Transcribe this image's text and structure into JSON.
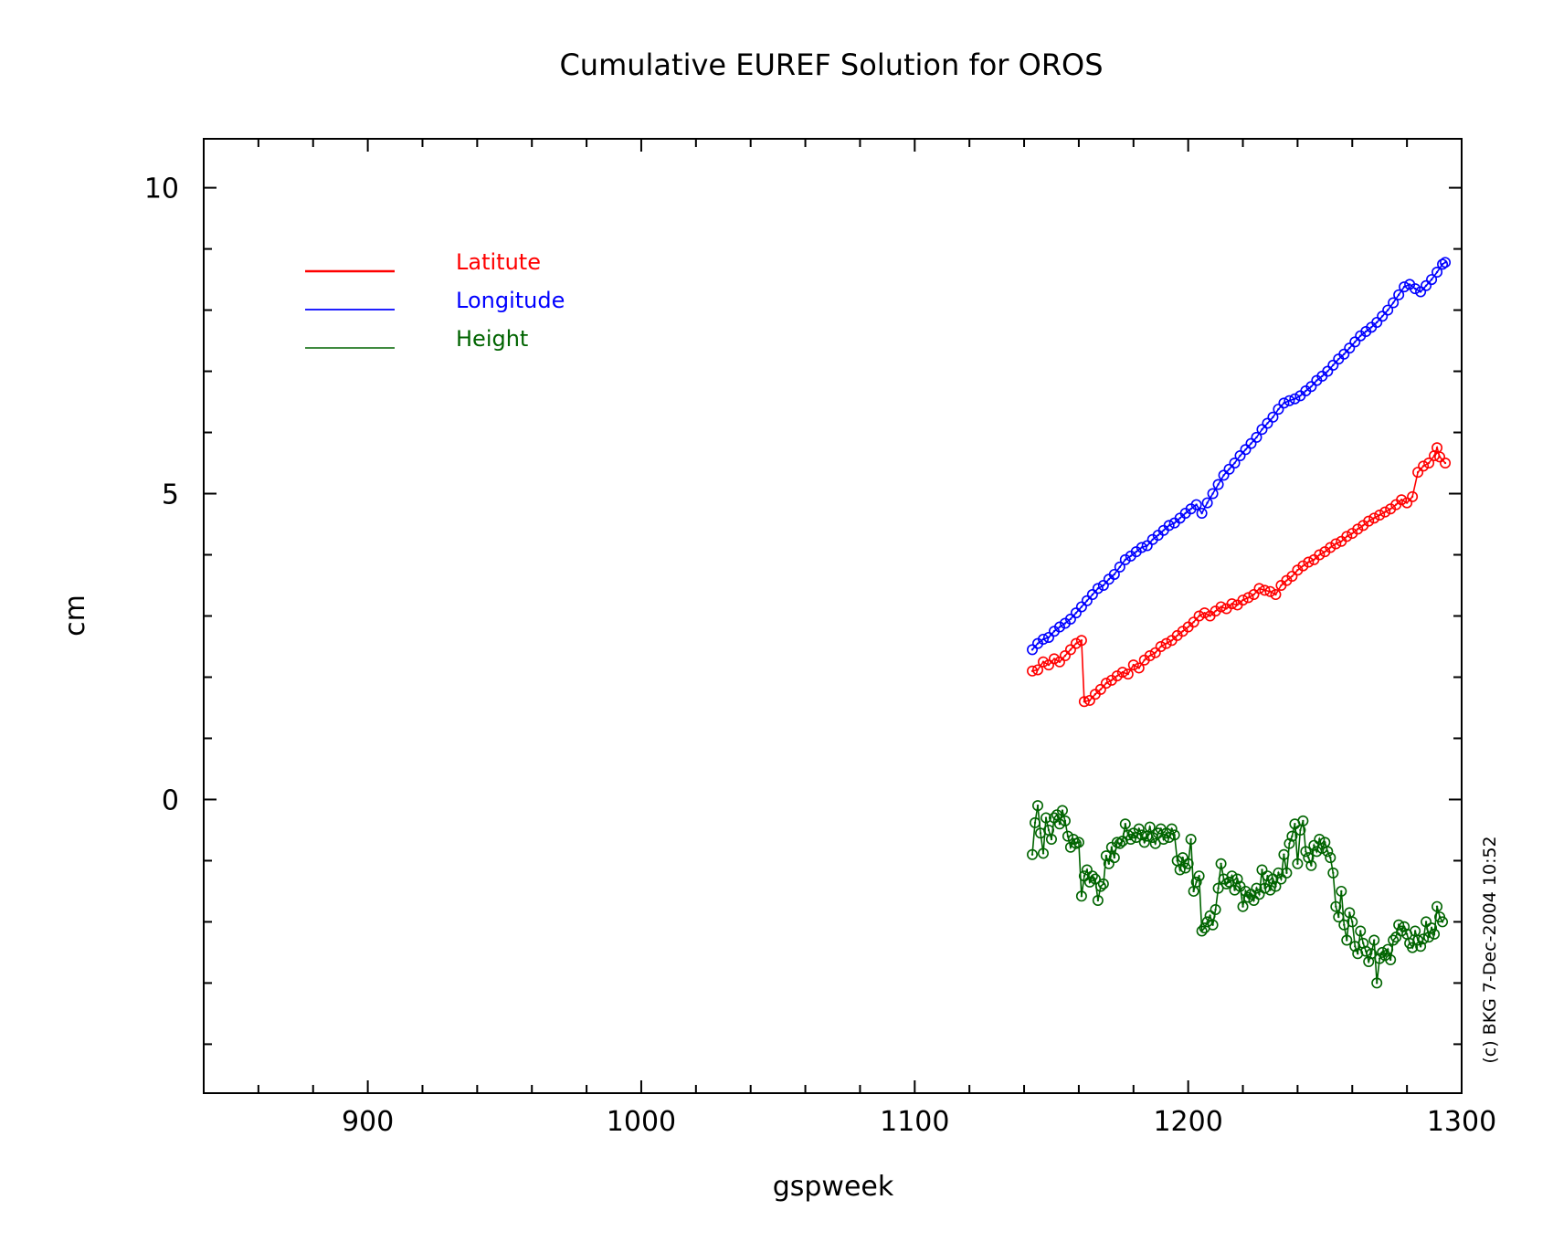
{
  "chart_data": {
    "type": "line",
    "title": "Cumulative EUREF Solution for OROS",
    "xlabel": "gspweek",
    "ylabel": "cm",
    "xlim": [
      840,
      1300
    ],
    "ylim": [
      -4.8,
      10.8
    ],
    "x_ticks": [
      900,
      1000,
      1100,
      1200,
      1300
    ],
    "x_tick_labels": [
      "900",
      "1000",
      "1100",
      "1200",
      "1300"
    ],
    "y_ticks": [
      0,
      5,
      10
    ],
    "y_tick_labels": [
      "0",
      "5",
      "10"
    ],
    "grid": false,
    "legend_position": "top-left",
    "credit": "(c) BKG 7-Dec-2004 10:52",
    "series": [
      {
        "name": "Latitute",
        "color": "#ff0000",
        "points": [
          [
            1143,
            2.1
          ],
          [
            1145,
            2.12
          ],
          [
            1147,
            2.25
          ],
          [
            1149,
            2.2
          ],
          [
            1151,
            2.3
          ],
          [
            1153,
            2.25
          ],
          [
            1155,
            2.35
          ],
          [
            1157,
            2.45
          ],
          [
            1159,
            2.55
          ],
          [
            1161,
            2.6
          ],
          [
            1162,
            1.6
          ],
          [
            1164,
            1.62
          ],
          [
            1166,
            1.72
          ],
          [
            1168,
            1.8
          ],
          [
            1170,
            1.9
          ],
          [
            1172,
            1.95
          ],
          [
            1174,
            2.02
          ],
          [
            1176,
            2.08
          ],
          [
            1178,
            2.05
          ],
          [
            1180,
            2.2
          ],
          [
            1182,
            2.15
          ],
          [
            1184,
            2.28
          ],
          [
            1186,
            2.35
          ],
          [
            1188,
            2.4
          ],
          [
            1190,
            2.5
          ],
          [
            1192,
            2.55
          ],
          [
            1194,
            2.6
          ],
          [
            1196,
            2.68
          ],
          [
            1198,
            2.75
          ],
          [
            1200,
            2.82
          ],
          [
            1202,
            2.9
          ],
          [
            1204,
            3.0
          ],
          [
            1206,
            3.05
          ],
          [
            1208,
            3.0
          ],
          [
            1210,
            3.08
          ],
          [
            1212,
            3.15
          ],
          [
            1214,
            3.12
          ],
          [
            1216,
            3.2
          ],
          [
            1218,
            3.18
          ],
          [
            1220,
            3.26
          ],
          [
            1222,
            3.3
          ],
          [
            1224,
            3.35
          ],
          [
            1226,
            3.45
          ],
          [
            1228,
            3.42
          ],
          [
            1230,
            3.4
          ],
          [
            1232,
            3.35
          ],
          [
            1234,
            3.5
          ],
          [
            1236,
            3.58
          ],
          [
            1238,
            3.65
          ],
          [
            1240,
            3.75
          ],
          [
            1242,
            3.82
          ],
          [
            1244,
            3.88
          ],
          [
            1246,
            3.92
          ],
          [
            1248,
            4.0
          ],
          [
            1250,
            4.05
          ],
          [
            1252,
            4.12
          ],
          [
            1254,
            4.18
          ],
          [
            1256,
            4.22
          ],
          [
            1258,
            4.3
          ],
          [
            1260,
            4.35
          ],
          [
            1262,
            4.42
          ],
          [
            1264,
            4.48
          ],
          [
            1266,
            4.55
          ],
          [
            1268,
            4.6
          ],
          [
            1270,
            4.65
          ],
          [
            1272,
            4.7
          ],
          [
            1274,
            4.75
          ],
          [
            1276,
            4.82
          ],
          [
            1278,
            4.9
          ],
          [
            1280,
            4.85
          ],
          [
            1282,
            4.95
          ],
          [
            1284,
            5.35
          ],
          [
            1286,
            5.45
          ],
          [
            1288,
            5.5
          ],
          [
            1290,
            5.62
          ],
          [
            1291,
            5.75
          ],
          [
            1292,
            5.6
          ],
          [
            1294,
            5.5
          ]
        ]
      },
      {
        "name": "Longitude",
        "color": "#0000ff",
        "points": [
          [
            1143,
            2.45
          ],
          [
            1145,
            2.55
          ],
          [
            1147,
            2.62
          ],
          [
            1149,
            2.65
          ],
          [
            1151,
            2.75
          ],
          [
            1153,
            2.82
          ],
          [
            1155,
            2.88
          ],
          [
            1157,
            2.95
          ],
          [
            1159,
            3.05
          ],
          [
            1161,
            3.15
          ],
          [
            1163,
            3.25
          ],
          [
            1165,
            3.35
          ],
          [
            1167,
            3.45
          ],
          [
            1169,
            3.5
          ],
          [
            1171,
            3.6
          ],
          [
            1173,
            3.68
          ],
          [
            1175,
            3.8
          ],
          [
            1177,
            3.92
          ],
          [
            1179,
            3.98
          ],
          [
            1181,
            4.05
          ],
          [
            1183,
            4.12
          ],
          [
            1185,
            4.15
          ],
          [
            1187,
            4.25
          ],
          [
            1189,
            4.32
          ],
          [
            1191,
            4.4
          ],
          [
            1193,
            4.48
          ],
          [
            1195,
            4.52
          ],
          [
            1197,
            4.6
          ],
          [
            1199,
            4.68
          ],
          [
            1201,
            4.75
          ],
          [
            1203,
            4.82
          ],
          [
            1205,
            4.68
          ],
          [
            1207,
            4.85
          ],
          [
            1209,
            5.0
          ],
          [
            1211,
            5.15
          ],
          [
            1213,
            5.3
          ],
          [
            1215,
            5.4
          ],
          [
            1217,
            5.5
          ],
          [
            1219,
            5.62
          ],
          [
            1221,
            5.72
          ],
          [
            1223,
            5.82
          ],
          [
            1225,
            5.92
          ],
          [
            1227,
            6.05
          ],
          [
            1229,
            6.15
          ],
          [
            1231,
            6.25
          ],
          [
            1233,
            6.38
          ],
          [
            1235,
            6.48
          ],
          [
            1237,
            6.52
          ],
          [
            1239,
            6.55
          ],
          [
            1241,
            6.6
          ],
          [
            1243,
            6.68
          ],
          [
            1245,
            6.75
          ],
          [
            1247,
            6.85
          ],
          [
            1249,
            6.92
          ],
          [
            1251,
            7.0
          ],
          [
            1253,
            7.1
          ],
          [
            1255,
            7.2
          ],
          [
            1257,
            7.28
          ],
          [
            1259,
            7.38
          ],
          [
            1261,
            7.48
          ],
          [
            1263,
            7.58
          ],
          [
            1265,
            7.65
          ],
          [
            1267,
            7.72
          ],
          [
            1269,
            7.8
          ],
          [
            1271,
            7.9
          ],
          [
            1273,
            8.0
          ],
          [
            1275,
            8.12
          ],
          [
            1277,
            8.25
          ],
          [
            1279,
            8.38
          ],
          [
            1281,
            8.42
          ],
          [
            1283,
            8.35
          ],
          [
            1285,
            8.3
          ],
          [
            1287,
            8.4
          ],
          [
            1289,
            8.5
          ],
          [
            1291,
            8.62
          ],
          [
            1293,
            8.75
          ],
          [
            1294,
            8.78
          ]
        ]
      },
      {
        "name": "Height",
        "color": "#006400",
        "points": [
          [
            1143,
            -0.9
          ],
          [
            1144,
            -0.38
          ],
          [
            1145,
            -0.1
          ],
          [
            1146,
            -0.55
          ],
          [
            1147,
            -0.88
          ],
          [
            1148,
            -0.3
          ],
          [
            1149,
            -0.5
          ],
          [
            1150,
            -0.65
          ],
          [
            1151,
            -0.3
          ],
          [
            1152,
            -0.25
          ],
          [
            1153,
            -0.4
          ],
          [
            1154,
            -0.18
          ],
          [
            1155,
            -0.35
          ],
          [
            1156,
            -0.6
          ],
          [
            1157,
            -0.78
          ],
          [
            1158,
            -0.65
          ],
          [
            1159,
            -0.72
          ],
          [
            1160,
            -0.7
          ],
          [
            1161,
            -1.58
          ],
          [
            1162,
            -1.25
          ],
          [
            1163,
            -1.15
          ],
          [
            1164,
            -1.35
          ],
          [
            1165,
            -1.25
          ],
          [
            1166,
            -1.3
          ],
          [
            1167,
            -1.65
          ],
          [
            1168,
            -1.42
          ],
          [
            1169,
            -1.38
          ],
          [
            1170,
            -0.92
          ],
          [
            1171,
            -1.05
          ],
          [
            1172,
            -0.78
          ],
          [
            1173,
            -0.95
          ],
          [
            1174,
            -0.7
          ],
          [
            1175,
            -0.72
          ],
          [
            1176,
            -0.68
          ],
          [
            1177,
            -0.4
          ],
          [
            1178,
            -0.58
          ],
          [
            1179,
            -0.65
          ],
          [
            1180,
            -0.55
          ],
          [
            1181,
            -0.62
          ],
          [
            1182,
            -0.48
          ],
          [
            1183,
            -0.58
          ],
          [
            1184,
            -0.7
          ],
          [
            1185,
            -0.6
          ],
          [
            1186,
            -0.45
          ],
          [
            1187,
            -0.62
          ],
          [
            1188,
            -0.72
          ],
          [
            1189,
            -0.55
          ],
          [
            1190,
            -0.48
          ],
          [
            1191,
            -0.65
          ],
          [
            1192,
            -0.55
          ],
          [
            1193,
            -0.62
          ],
          [
            1194,
            -0.48
          ],
          [
            1195,
            -0.58
          ],
          [
            1196,
            -1.0
          ],
          [
            1197,
            -1.15
          ],
          [
            1198,
            -0.95
          ],
          [
            1199,
            -1.12
          ],
          [
            1200,
            -1.05
          ],
          [
            1201,
            -0.65
          ],
          [
            1202,
            -1.5
          ],
          [
            1203,
            -1.35
          ],
          [
            1204,
            -1.25
          ],
          [
            1205,
            -2.15
          ],
          [
            1206,
            -2.1
          ],
          [
            1207,
            -2.0
          ],
          [
            1208,
            -1.9
          ],
          [
            1209,
            -2.05
          ],
          [
            1210,
            -1.8
          ],
          [
            1211,
            -1.45
          ],
          [
            1212,
            -1.05
          ],
          [
            1213,
            -1.3
          ],
          [
            1214,
            -1.38
          ],
          [
            1215,
            -1.35
          ],
          [
            1216,
            -1.25
          ],
          [
            1217,
            -1.48
          ],
          [
            1218,
            -1.3
          ],
          [
            1219,
            -1.42
          ],
          [
            1220,
            -1.75
          ],
          [
            1221,
            -1.5
          ],
          [
            1222,
            -1.6
          ],
          [
            1223,
            -1.55
          ],
          [
            1224,
            -1.65
          ],
          [
            1225,
            -1.45
          ],
          [
            1226,
            -1.55
          ],
          [
            1227,
            -1.15
          ],
          [
            1228,
            -1.45
          ],
          [
            1229,
            -1.25
          ],
          [
            1230,
            -1.48
          ],
          [
            1231,
            -1.3
          ],
          [
            1232,
            -1.42
          ],
          [
            1233,
            -1.2
          ],
          [
            1234,
            -1.3
          ],
          [
            1235,
            -0.9
          ],
          [
            1236,
            -1.2
          ],
          [
            1237,
            -0.72
          ],
          [
            1238,
            -0.6
          ],
          [
            1239,
            -0.4
          ],
          [
            1240,
            -1.05
          ],
          [
            1241,
            -0.5
          ],
          [
            1242,
            -0.35
          ],
          [
            1243,
            -0.85
          ],
          [
            1244,
            -0.95
          ],
          [
            1245,
            -1.08
          ],
          [
            1246,
            -0.75
          ],
          [
            1247,
            -0.85
          ],
          [
            1248,
            -0.65
          ],
          [
            1249,
            -0.8
          ],
          [
            1250,
            -0.7
          ],
          [
            1251,
            -0.85
          ],
          [
            1252,
            -0.95
          ],
          [
            1253,
            -1.2
          ],
          [
            1254,
            -1.75
          ],
          [
            1255,
            -1.92
          ],
          [
            1256,
            -1.5
          ],
          [
            1257,
            -2.05
          ],
          [
            1258,
            -2.3
          ],
          [
            1259,
            -1.85
          ],
          [
            1260,
            -2.0
          ],
          [
            1261,
            -2.4
          ],
          [
            1262,
            -2.52
          ],
          [
            1263,
            -2.15
          ],
          [
            1264,
            -2.35
          ],
          [
            1265,
            -2.48
          ],
          [
            1266,
            -2.65
          ],
          [
            1267,
            -2.52
          ],
          [
            1268,
            -2.3
          ],
          [
            1269,
            -3.0
          ],
          [
            1270,
            -2.6
          ],
          [
            1271,
            -2.5
          ],
          [
            1272,
            -2.55
          ],
          [
            1273,
            -2.45
          ],
          [
            1274,
            -2.62
          ],
          [
            1275,
            -2.3
          ],
          [
            1276,
            -2.25
          ],
          [
            1277,
            -2.05
          ],
          [
            1278,
            -2.15
          ],
          [
            1279,
            -2.08
          ],
          [
            1280,
            -2.2
          ],
          [
            1281,
            -2.35
          ],
          [
            1282,
            -2.42
          ],
          [
            1283,
            -2.15
          ],
          [
            1284,
            -2.3
          ],
          [
            1285,
            -2.4
          ],
          [
            1286,
            -2.28
          ],
          [
            1287,
            -2.0
          ],
          [
            1288,
            -2.25
          ],
          [
            1289,
            -2.1
          ],
          [
            1290,
            -2.2
          ],
          [
            1291,
            -1.75
          ],
          [
            1292,
            -1.92
          ],
          [
            1293,
            -2.0
          ]
        ]
      }
    ]
  }
}
